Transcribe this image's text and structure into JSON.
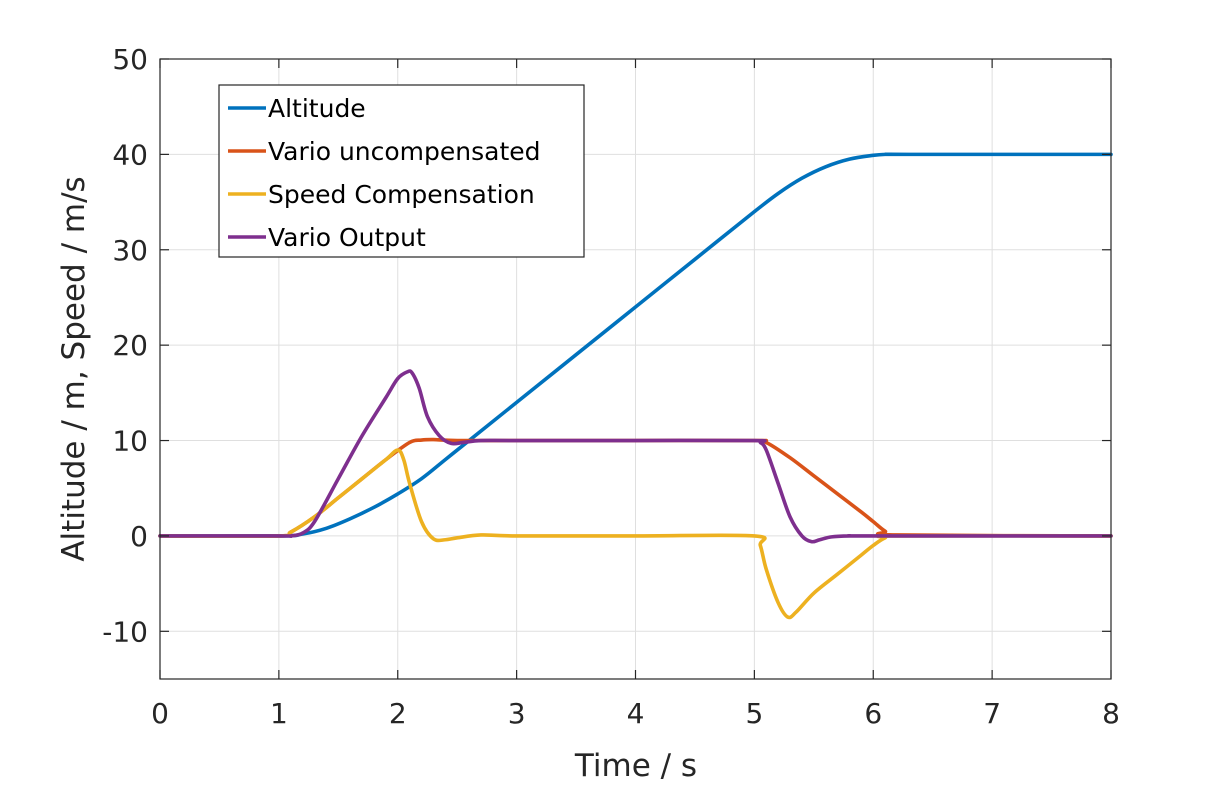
{
  "chart_data": {
    "type": "line",
    "title": "",
    "xlabel": "Time / s",
    "ylabel": "Altitude / m, Speed / m/s",
    "xlim": [
      0,
      8
    ],
    "ylim": [
      -15,
      50
    ],
    "xticks": [
      0,
      1,
      2,
      3,
      4,
      5,
      6,
      7,
      8
    ],
    "yticks": [
      -10,
      0,
      10,
      20,
      30,
      40,
      50
    ],
    "xtick_labels": [
      "0",
      "1",
      "2",
      "3",
      "4",
      "5",
      "6",
      "7",
      "8"
    ],
    "ytick_labels": [
      "-10",
      "0",
      "10",
      "20",
      "30",
      "40",
      "50"
    ],
    "grid": true,
    "legend_position": "top-left",
    "series": [
      {
        "name": "Altitude",
        "color": "#0072BD",
        "x": [
          0,
          1.0,
          1.2,
          1.4,
          1.6,
          1.8,
          2.0,
          2.2,
          2.4,
          2.6,
          3.0,
          3.5,
          4.0,
          4.5,
          5.0,
          5.2,
          5.4,
          5.6,
          5.8,
          6.0,
          6.1,
          6.3,
          8.0
        ],
        "y": [
          0,
          0,
          0.2,
          0.8,
          1.8,
          3.0,
          4.4,
          6.0,
          8.0,
          10.0,
          14.0,
          19.0,
          24.0,
          29.0,
          34.0,
          35.9,
          37.5,
          38.7,
          39.5,
          39.9,
          40.0,
          40.0,
          40.0
        ]
      },
      {
        "name": "Vario uncompensated",
        "color": "#D95319",
        "x": [
          0,
          1.0,
          1.1,
          1.3,
          1.5,
          1.7,
          1.9,
          2.1,
          2.2,
          2.3,
          2.5,
          3.0,
          4.0,
          5.0,
          5.1,
          5.3,
          5.5,
          5.7,
          5.9,
          6.0,
          6.1,
          6.2,
          8.0
        ],
        "y": [
          0,
          0,
          0.4,
          2.0,
          4.0,
          6.0,
          8.0,
          9.8,
          10.05,
          10.1,
          10.0,
          10.0,
          10.0,
          10.0,
          9.8,
          8.2,
          6.3,
          4.4,
          2.5,
          1.5,
          0.5,
          0.1,
          0
        ]
      },
      {
        "name": "Speed Compensation",
        "color": "#EDB120",
        "x": [
          0,
          1.0,
          1.1,
          1.3,
          1.5,
          1.7,
          1.9,
          2.0,
          2.05,
          2.1,
          2.2,
          2.3,
          2.4,
          2.5,
          2.7,
          3.0,
          4.0,
          5.0,
          5.05,
          5.1,
          5.2,
          5.28,
          5.35,
          5.5,
          5.7,
          5.9,
          6.0,
          6.1,
          6.2,
          8.0
        ],
        "y": [
          0,
          0,
          0.4,
          2.0,
          4.0,
          6.0,
          8.0,
          9.0,
          8.0,
          5.5,
          1.5,
          -0.3,
          -0.4,
          -0.2,
          0.1,
          0,
          0,
          0,
          -1.0,
          -3.5,
          -7.0,
          -8.5,
          -8.0,
          -6.0,
          -4.0,
          -2.0,
          -1.0,
          -0.2,
          0,
          0
        ]
      },
      {
        "name": "Vario Output",
        "color": "#7E2F8E",
        "x": [
          0,
          1.0,
          1.1,
          1.2,
          1.3,
          1.5,
          1.7,
          1.9,
          2.0,
          2.08,
          2.12,
          2.18,
          2.25,
          2.35,
          2.45,
          2.55,
          2.7,
          3.0,
          4.0,
          5.0,
          5.05,
          5.1,
          5.2,
          5.3,
          5.4,
          5.48,
          5.55,
          5.65,
          5.8,
          6.0,
          8.0
        ],
        "y": [
          0,
          0,
          0,
          0.3,
          1.5,
          6.0,
          10.5,
          14.5,
          16.5,
          17.2,
          17.1,
          15.5,
          12.5,
          10.5,
          9.7,
          9.8,
          10.0,
          10.0,
          10.0,
          10.0,
          9.8,
          9.0,
          5.5,
          2.0,
          0.0,
          -0.6,
          -0.4,
          -0.1,
          0,
          0,
          0
        ]
      }
    ]
  }
}
